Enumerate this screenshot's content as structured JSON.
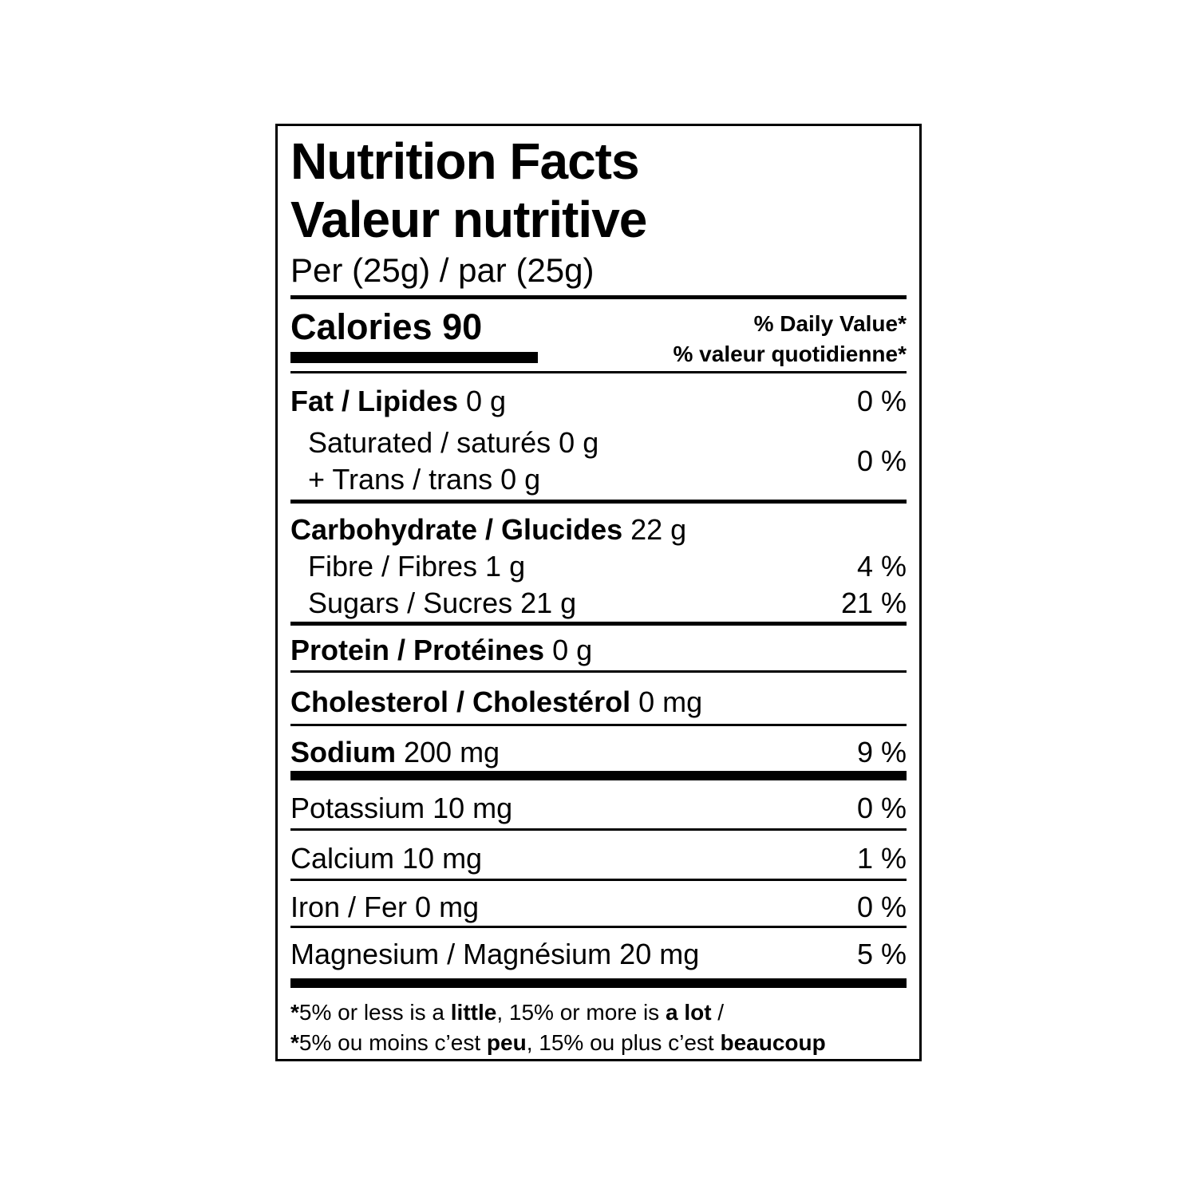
{
  "colors": {
    "ink": "#000000",
    "paper": "#ffffff"
  },
  "label": {
    "title_en": "Nutrition Facts",
    "title_fr": "Valeur nutritive",
    "serving": "Per (25g) / par (25g)",
    "calories_line": "Calories 90",
    "daily_value_en": "% Daily Value*",
    "daily_value_fr": "% valeur quotidienne*",
    "rows": {
      "fat": {
        "bold": "Fat / Lipides",
        "rest": " 0 g",
        "pct": "0 %"
      },
      "sat_trans": {
        "line1": "Saturated / saturés 0 g",
        "line2": "+ Trans / trans 0 g",
        "pct": "0 %"
      },
      "carb": {
        "bold": "Carbohydrate / Glucides",
        "rest": " 22 g"
      },
      "fibre": {
        "text": "Fibre / Fibres 1 g",
        "pct": "4 %"
      },
      "sugars": {
        "text": "Sugars / Sucres 21 g",
        "pct": "21 %"
      },
      "protein": {
        "bold": "Protein / Protéines",
        "rest": " 0 g"
      },
      "cholesterol": {
        "bold": "Cholesterol / Cholestérol",
        "rest": " 0 mg"
      },
      "sodium": {
        "bold": "Sodium",
        "rest": " 200 mg",
        "pct": "9 %"
      },
      "potassium": {
        "text": "Potassium 10 mg",
        "pct": "0 %"
      },
      "calcium": {
        "text": "Calcium 10 mg",
        "pct": "1 %"
      },
      "iron": {
        "text": "Iron / Fer 0 mg",
        "pct": "0 %"
      },
      "magnesium": {
        "text": "Magnesium / Magnésium 20 mg",
        "pct": "5 %"
      }
    },
    "footnote_en": {
      "star": "*",
      "pre": "5% or less is a ",
      "bold1": "little",
      "mid": ", 15% or more is ",
      "bold2": "a lot",
      "post": " /"
    },
    "footnote_fr": {
      "star": "*",
      "pre": "5% ou moins c’est ",
      "bold1": "peu",
      "mid": ", 15% ou plus c’est ",
      "bold2": "beaucoup"
    }
  }
}
